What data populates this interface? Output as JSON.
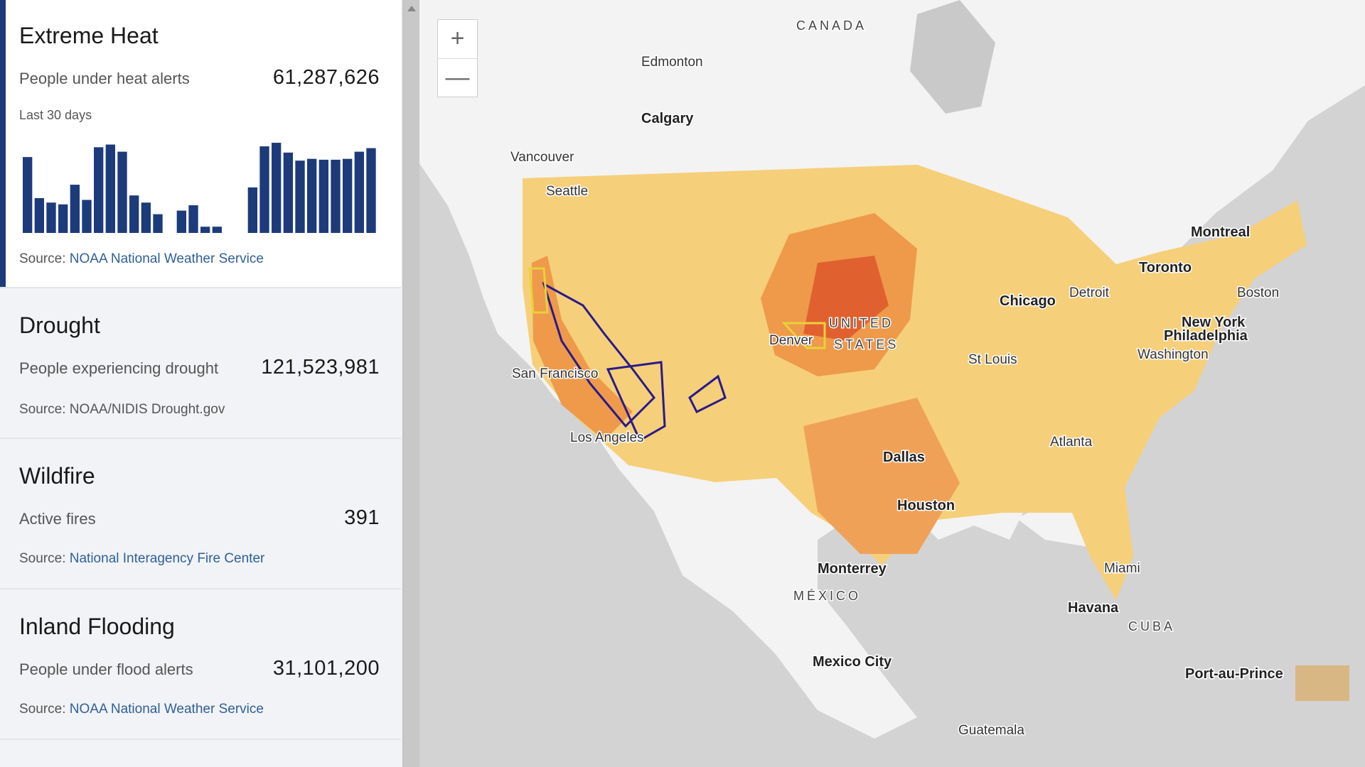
{
  "cards": [
    {
      "title": "Extreme Heat",
      "metric_label": "People under heat alerts",
      "metric_value": "61,287,626",
      "chart_label": "Last 30 days",
      "source_label": "Source:",
      "source_link": "NOAA National Weather Service",
      "chart_data": {
        "type": "bar",
        "color": "#1d3b7a",
        "ylim": [
          0,
          105
        ],
        "values": [
          85,
          39,
          34,
          32,
          54,
          37,
          96,
          99,
          91,
          42,
          34,
          21,
          0,
          25,
          31,
          7,
          7,
          0,
          0,
          51,
          97,
          101,
          90,
          81,
          83,
          82,
          82,
          83,
          91,
          95
        ]
      }
    },
    {
      "title": "Drought",
      "metric_label": "People experiencing drought",
      "metric_value": "121,523,981",
      "source_label": "Source: NOAA/NIDIS Drought.gov"
    },
    {
      "title": "Wildfire",
      "metric_label": "Active fires",
      "metric_value": "391",
      "source_label": "Source:",
      "source_link": "National Interagency Fire Center"
    },
    {
      "title": "Inland Flooding",
      "metric_label": "People under flood alerts",
      "metric_value": "31,101,200",
      "source_label": "Source:",
      "source_link": "NOAA National Weather Service"
    }
  ],
  "map": {
    "zoom_in": "+",
    "zoom_out": "—",
    "labels": [
      "CANADA",
      "Edmonton",
      "Calgary",
      "Vancouver",
      "Seattle",
      "Montreal",
      "Toronto",
      "Detroit",
      "Boston",
      "Chicago",
      "New York",
      "Philadelphia",
      "Washington",
      "UNITED",
      "STATES",
      "Denver",
      "San Francisco",
      "Los Angeles",
      "St Louis",
      "Dallas",
      "Atlanta",
      "Houston",
      "Miami",
      "Monterrey",
      "MÉXICO",
      "Havana",
      "CUBA",
      "Mexico City",
      "Port-au-Prince",
      "Guatemala"
    ]
  }
}
